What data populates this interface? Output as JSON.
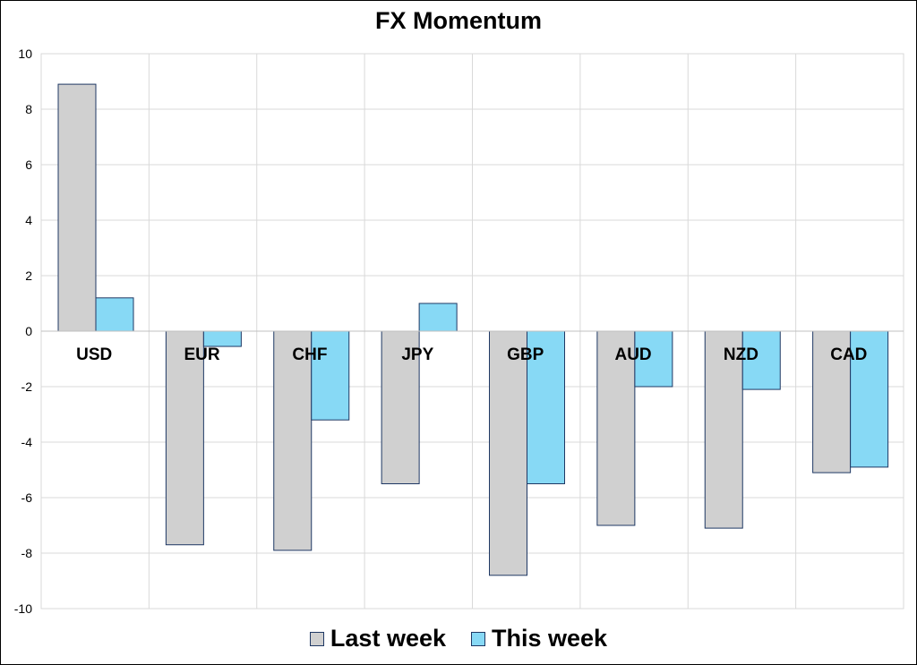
{
  "chart_data": {
    "type": "bar",
    "title": "FX Momentum",
    "xlabel": "",
    "ylabel": "",
    "categories": [
      "USD",
      "EUR",
      "CHF",
      "JPY",
      "GBP",
      "AUD",
      "NZD",
      "CAD"
    ],
    "series": [
      {
        "name": "Last week",
        "color": "#d0d0d0",
        "values": [
          8.9,
          -7.7,
          -7.9,
          -5.5,
          -8.8,
          -7.0,
          -7.1,
          -5.1
        ]
      },
      {
        "name": "This week",
        "color": "#87d9f5",
        "values": [
          1.2,
          -0.55,
          -3.2,
          1.0,
          -5.5,
          -2.0,
          -2.1,
          -4.9
        ]
      }
    ],
    "ylim": [
      -10,
      10
    ],
    "yticks": [
      10,
      8,
      6,
      4,
      2,
      0,
      -2,
      -4,
      -6,
      -8,
      -10
    ],
    "grid": true,
    "legend_position": "bottom",
    "bar_edge_color": "#1f3864"
  }
}
